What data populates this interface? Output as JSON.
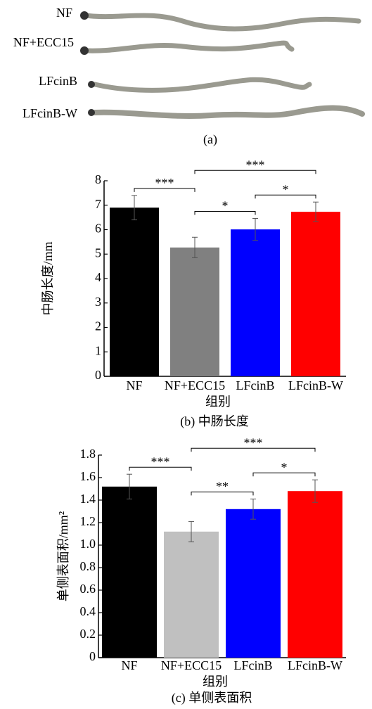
{
  "photo": {
    "labels": [
      "NF",
      "NF+ECC15",
      "LFcinB",
      "LFcinB-W"
    ],
    "caption": "(a)"
  },
  "chart_data": [
    {
      "type": "bar",
      "caption": "(b) 中肠长度",
      "xlabel": "组别",
      "ylabel": "中肠长度/mm",
      "categories": [
        "NF",
        "NF+ECC15",
        "LFcinB",
        "LFcinB-W"
      ],
      "values": [
        6.9,
        5.27,
        6.01,
        6.73
      ],
      "errors": [
        0.5,
        0.42,
        0.45,
        0.4
      ],
      "colors": [
        "#000000",
        "#808080",
        "#0000ff",
        "#ff0000"
      ],
      "ylim": [
        0,
        8
      ],
      "yticks": [
        0,
        1,
        2,
        3,
        4,
        5,
        6,
        7,
        8
      ],
      "annotations": [
        {
          "text": "***",
          "between": [
            0,
            1
          ]
        },
        {
          "text": "***",
          "between": [
            1,
            3
          ]
        },
        {
          "text": "*",
          "between": [
            1,
            2
          ]
        },
        {
          "text": "*",
          "between": [
            2,
            3
          ]
        }
      ]
    },
    {
      "type": "bar",
      "caption": "(c) 单侧表面积",
      "xlabel": "组别",
      "ylabel": "单侧表面积/mm²",
      "categories": [
        "NF",
        "NF+ECC15",
        "LFcinB",
        "LFcinB-W"
      ],
      "values": [
        1.52,
        1.12,
        1.32,
        1.48
      ],
      "errors": [
        0.11,
        0.09,
        0.09,
        0.1
      ],
      "colors": [
        "#000000",
        "#c0c0c0",
        "#0000ff",
        "#ff0000"
      ],
      "ylim": [
        0,
        1.8
      ],
      "yticks": [
        0,
        0.2,
        0.4,
        0.6,
        0.8,
        {
          "value": 1,
          "label": "1.0"
        },
        1.2,
        1.4,
        1.6,
        1.8
      ],
      "annotations": [
        {
          "text": "***",
          "between": [
            0,
            1
          ]
        },
        {
          "text": "***",
          "between": [
            1,
            3
          ]
        },
        {
          "text": "**",
          "between": [
            1,
            2
          ]
        },
        {
          "text": "*",
          "between": [
            2,
            3
          ]
        }
      ]
    }
  ]
}
